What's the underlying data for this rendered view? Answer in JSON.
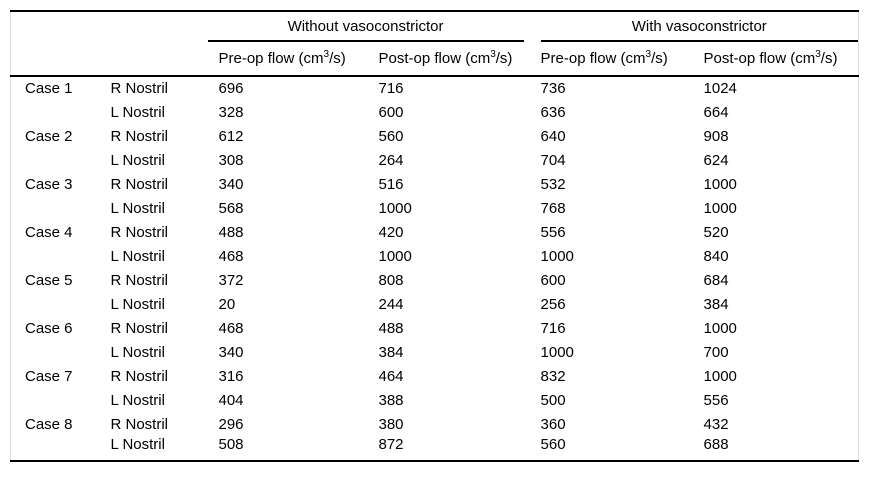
{
  "table": {
    "group_headers": [
      {
        "label": "Without vasoconstrictor"
      },
      {
        "label": "With vasoconstrictor"
      }
    ],
    "column_headers": [
      {
        "prefix": "Pre-op flow (cm",
        "sup": "3",
        "suffix": "/s)"
      },
      {
        "prefix": "Post-op flow (cm",
        "sup": "3",
        "suffix": "/s)"
      },
      {
        "prefix": "Pre-op flow (cm",
        "sup": "3",
        "suffix": "/s)"
      },
      {
        "prefix": "Post-op flow (cm",
        "sup": "3",
        "suffix": "/s)"
      }
    ],
    "rows": [
      {
        "case": "Case 1",
        "nostril": "R Nostril",
        "wo_pre": "696",
        "wo_post": "716",
        "w_pre": "736",
        "w_post": "1024"
      },
      {
        "case": "",
        "nostril": "L Nostril",
        "wo_pre": "328",
        "wo_post": "600",
        "w_pre": "636",
        "w_post": "664"
      },
      {
        "case": "Case 2",
        "nostril": "R Nostril",
        "wo_pre": "612",
        "wo_post": "560",
        "w_pre": "640",
        "w_post": "908"
      },
      {
        "case": "",
        "nostril": "L Nostril",
        "wo_pre": "308",
        "wo_post": "264",
        "w_pre": "704",
        "w_post": "624"
      },
      {
        "case": "Case 3",
        "nostril": "R Nostril",
        "wo_pre": "340",
        "wo_post": "516",
        "w_pre": "532",
        "w_post": "1000"
      },
      {
        "case": "",
        "nostril": "L Nostril",
        "wo_pre": "568",
        "wo_post": "1000",
        "w_pre": "768",
        "w_post": "1000"
      },
      {
        "case": "Case 4",
        "nostril": "R Nostril",
        "wo_pre": "488",
        "wo_post": "420",
        "w_pre": "556",
        "w_post": "520"
      },
      {
        "case": "",
        "nostril": "L Nostril",
        "wo_pre": "468",
        "wo_post": "1000",
        "w_pre": "1000",
        "w_post": "840"
      },
      {
        "case": "Case 5",
        "nostril": "R Nostril",
        "wo_pre": "372",
        "wo_post": "808",
        "w_pre": "600",
        "w_post": "684"
      },
      {
        "case": "",
        "nostril": "L Nostril",
        "wo_pre": "20",
        "wo_post": "244",
        "w_pre": "256",
        "w_post": "384"
      },
      {
        "case": "Case 6",
        "nostril": "R Nostril",
        "wo_pre": "468",
        "wo_post": "488",
        "w_pre": "716",
        "w_post": "1000"
      },
      {
        "case": "",
        "nostril": "L Nostril",
        "wo_pre": "340",
        "wo_post": "384",
        "w_pre": "1000",
        "w_post": "700"
      },
      {
        "case": "Case 7",
        "nostril": "R Nostril",
        "wo_pre": "316",
        "wo_post": "464",
        "w_pre": "832",
        "w_post": "1000"
      },
      {
        "case": "",
        "nostril": "L Nostril",
        "wo_pre": "404",
        "wo_post": "388",
        "w_pre": "500",
        "w_post": "556"
      },
      {
        "case": "Case 8",
        "nostril": "R Nostril",
        "wo_pre": "296",
        "wo_post": "380",
        "w_pre": "360",
        "w_post": "432"
      },
      {
        "case": "",
        "nostril": "L Nostril",
        "wo_pre": "508",
        "wo_post": "872",
        "w_pre": "560",
        "w_post": "688"
      }
    ]
  },
  "colors": {
    "rule": "#000000",
    "text": "#000000",
    "background": "#ffffff",
    "faint_border": "#dcdcdc"
  }
}
